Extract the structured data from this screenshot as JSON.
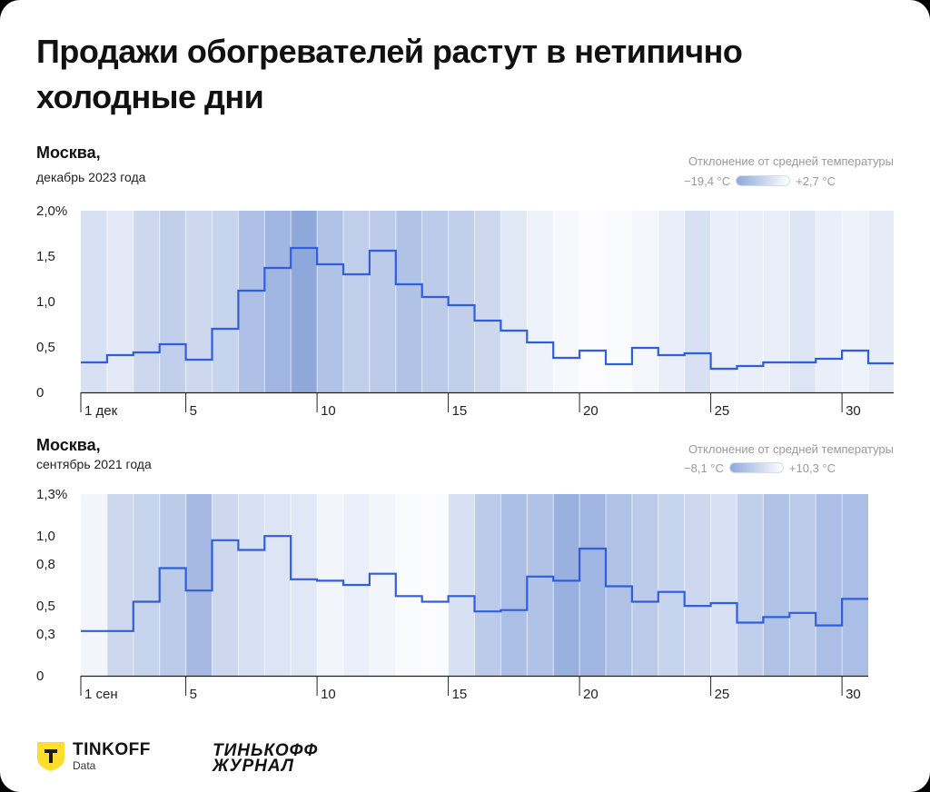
{
  "title": "Продажи обогревателей растут в нетипично холодные дни",
  "branding": {
    "logo_name": "TINKOFF",
    "logo_sub": "Data",
    "journal_line1": "ТИНЬКОФФ",
    "journal_line2": "ЖУРНАЛ"
  },
  "colors": {
    "line": "#2f5fdc",
    "band_cold": "#8fa8dc",
    "band_warm": "#ffffff",
    "axis": "#222222"
  },
  "panels": [
    {
      "city": "Москва,",
      "period": "декабрь 2023 года",
      "legend_title": "Отклонение от средней температуры",
      "legend_min": "−19,4 °С",
      "legend_max": "+2,7 °С"
    },
    {
      "city": "Москва,",
      "period": "сентябрь 2021 года",
      "legend_title": "Отклонение от средней температуры",
      "legend_min": "−8,1 °С",
      "legend_max": "+10,3 °С"
    }
  ],
  "chart_data": [
    {
      "type": "line",
      "step": true,
      "days": 31,
      "first_day_label": "1 дек",
      "x_ticks": [
        1,
        5,
        10,
        15,
        20,
        25,
        30
      ],
      "x_tick_labels": [
        "1 дек",
        "5",
        "10",
        "15",
        "20",
        "25",
        "30"
      ],
      "y_ticks": [
        0,
        0.5,
        1.0,
        1.5,
        2.0
      ],
      "y_tick_labels": [
        "0",
        "0,5",
        "1,0",
        "1,5",
        "2,0%"
      ],
      "ylim": [
        0,
        2.0
      ],
      "values": [
        0.33,
        0.41,
        0.44,
        0.53,
        0.36,
        0.7,
        1.12,
        1.37,
        1.59,
        1.41,
        1.3,
        1.56,
        1.19,
        1.05,
        0.96,
        0.79,
        0.68,
        0.55,
        0.38,
        0.46,
        0.31,
        0.49,
        0.41,
        0.43,
        0.26,
        0.29,
        0.33,
        0.33,
        0.37,
        0.46,
        0.32
      ],
      "temp_intensity": [
        0.35,
        0.25,
        0.45,
        0.55,
        0.45,
        0.5,
        0.72,
        0.85,
        1.0,
        0.7,
        0.55,
        0.6,
        0.7,
        0.6,
        0.55,
        0.45,
        0.28,
        0.15,
        0.08,
        0.03,
        0.05,
        0.1,
        0.2,
        0.35,
        0.2,
        0.2,
        0.2,
        0.3,
        0.2,
        0.15,
        0.22
      ],
      "legend_range": [
        -19.4,
        2.7
      ]
    },
    {
      "type": "line",
      "step": true,
      "days": 30,
      "first_day_label": "1 сен",
      "x_ticks": [
        1,
        5,
        10,
        15,
        20,
        25,
        30
      ],
      "x_tick_labels": [
        "1 сен",
        "5",
        "10",
        "15",
        "20",
        "25",
        "30"
      ],
      "y_ticks": [
        0,
        0.3,
        0.5,
        0.8,
        1.0,
        1.3
      ],
      "y_tick_labels": [
        "0",
        "0,3",
        "0,5",
        "0,8",
        "1,0",
        "1,3%"
      ],
      "ylim": [
        0,
        1.3
      ],
      "values": [
        0.32,
        0.32,
        0.53,
        0.77,
        0.61,
        0.97,
        0.9,
        1.0,
        0.69,
        0.68,
        0.65,
        0.73,
        0.57,
        0.53,
        0.57,
        0.46,
        0.47,
        0.71,
        0.68,
        0.91,
        0.64,
        0.53,
        0.6,
        0.5,
        0.52,
        0.38,
        0.42,
        0.45,
        0.36,
        0.55
      ],
      "temp_intensity": [
        0.12,
        0.45,
        0.5,
        0.6,
        0.8,
        0.45,
        0.35,
        0.3,
        0.28,
        0.12,
        0.18,
        0.12,
        0.05,
        0.03,
        0.35,
        0.6,
        0.75,
        0.7,
        0.9,
        0.85,
        0.7,
        0.6,
        0.5,
        0.45,
        0.35,
        0.55,
        0.7,
        0.6,
        0.75,
        0.75
      ],
      "legend_range": [
        -8.1,
        10.3
      ]
    }
  ]
}
